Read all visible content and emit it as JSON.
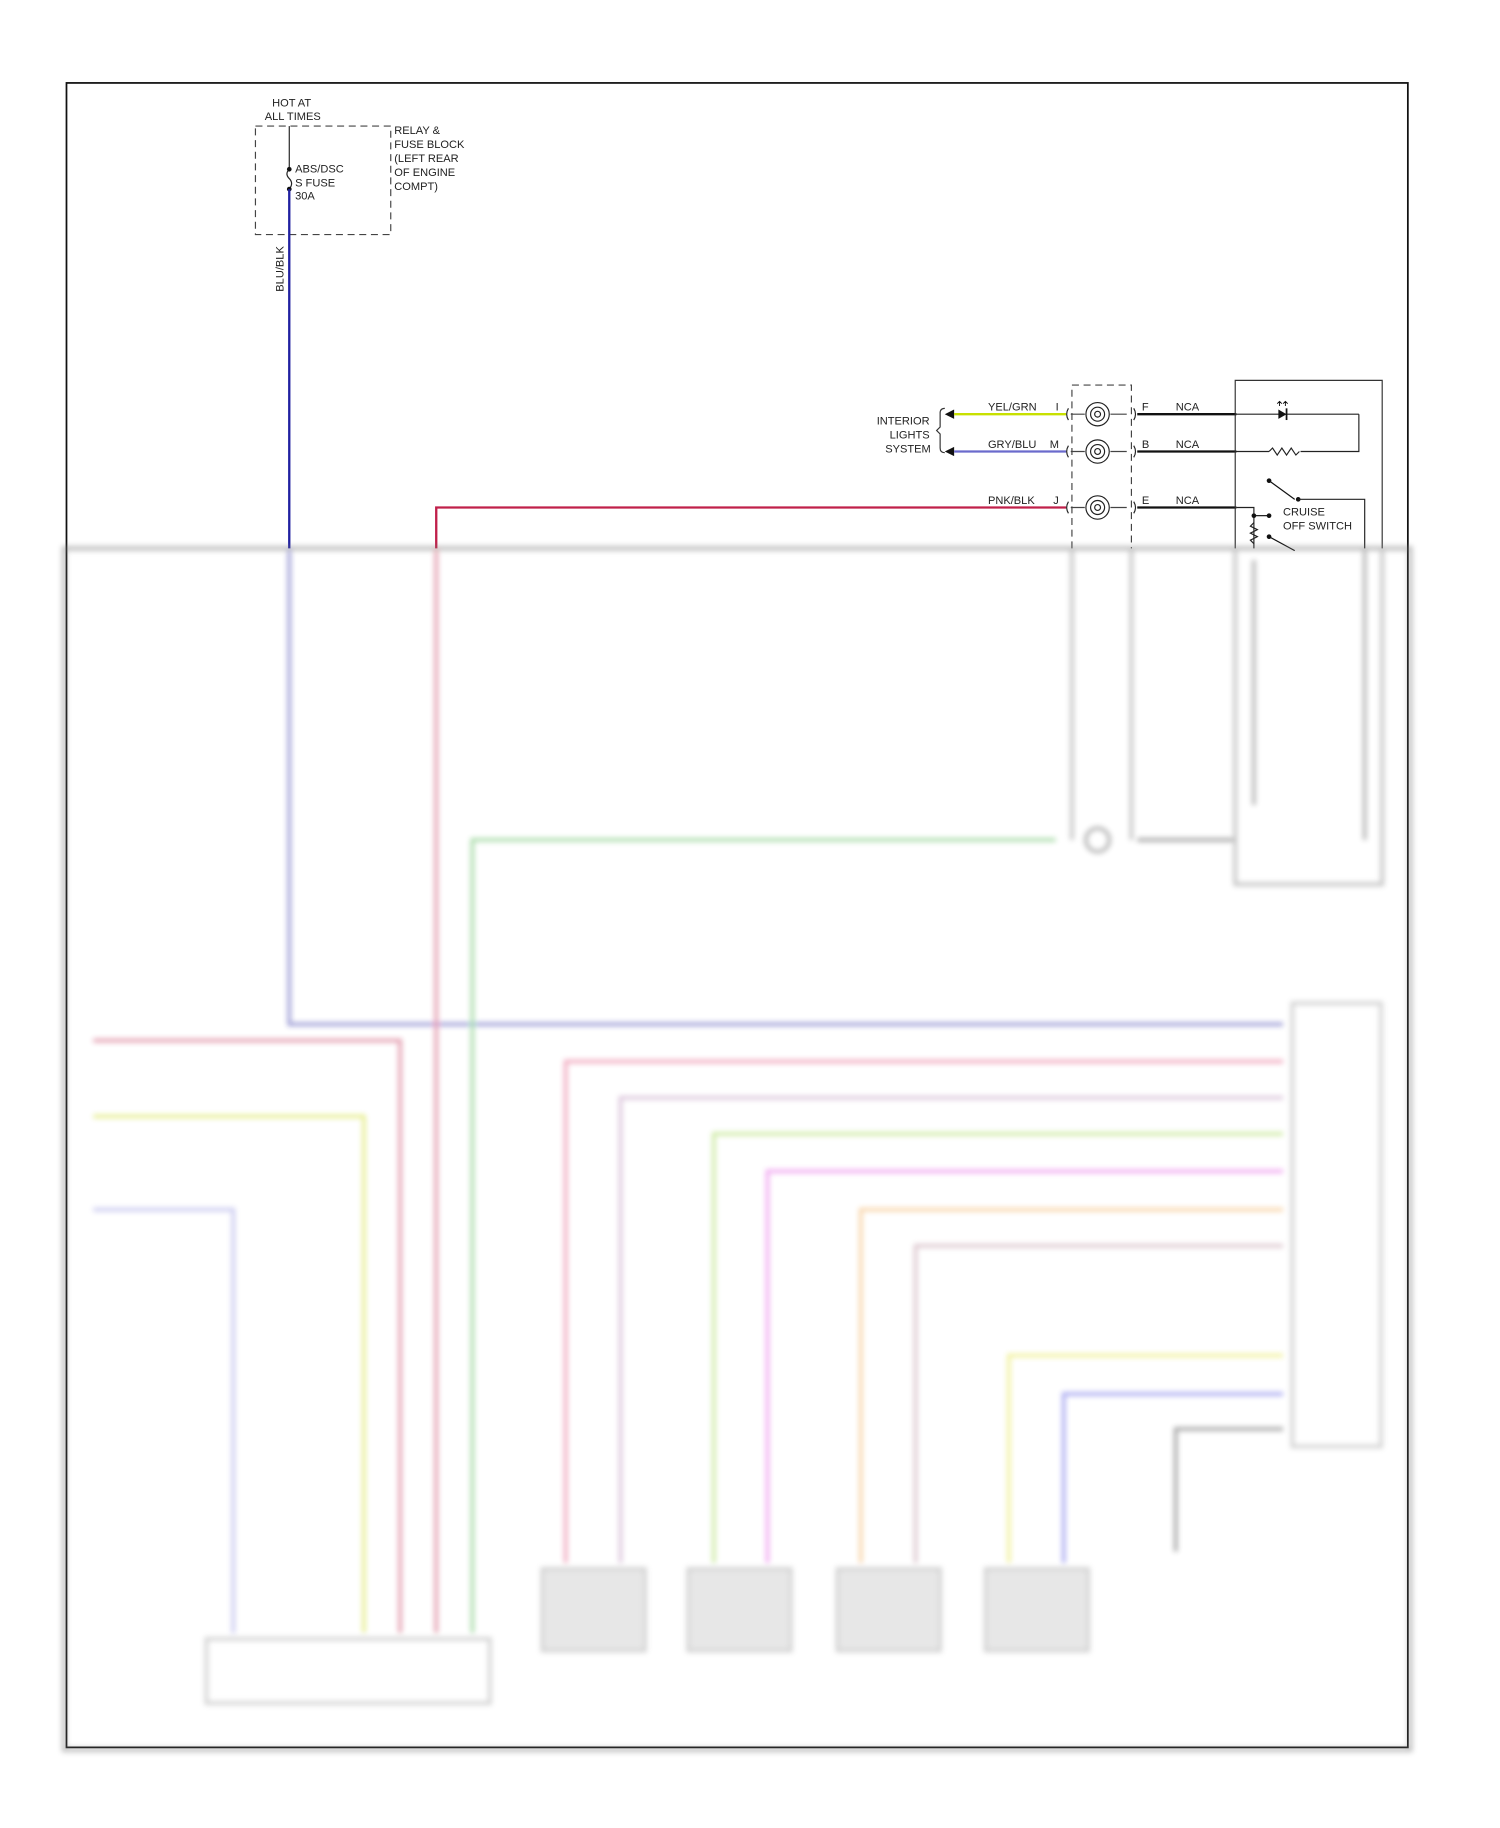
{
  "power": {
    "hot_line1": "HOT AT",
    "hot_line2": "ALL TIMES",
    "fuse_line1": "ABS/DSC",
    "fuse_line2": "S FUSE",
    "fuse_line3": "30A",
    "block_line1": "RELAY &",
    "block_line2": "FUSE BLOCK",
    "block_line3": "(LEFT REAR",
    "block_line4": "OF ENGINE",
    "block_line5": "COMPT)",
    "wire_label": "BLU/BLK"
  },
  "interior_lights": {
    "line1": "INTERIOR",
    "line2": "LIGHTS",
    "line3": "SYSTEM"
  },
  "clockspring_circuits": [
    {
      "wire": "YEL/GRN",
      "pin_in": "I",
      "pin_out": "F",
      "out_wire": "NCA",
      "color": "#c8e000"
    },
    {
      "wire": "GRY/BLU",
      "pin_in": "M",
      "pin_out": "B",
      "out_wire": "NCA",
      "color": "#6a6acc"
    },
    {
      "wire": "PNK/BLK",
      "pin_in": "J",
      "pin_out": "E",
      "out_wire": "NCA",
      "color": "#c0204a"
    }
  ],
  "cruise_switch": {
    "line1": "CRUISE",
    "line2": "OFF SWITCH"
  },
  "colors": {
    "blu_blk": "#2020a0",
    "frame": "#111111"
  }
}
